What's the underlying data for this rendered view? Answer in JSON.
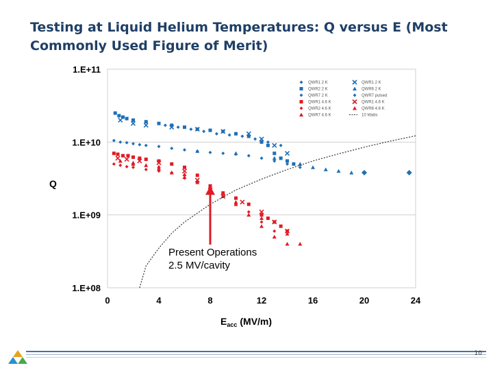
{
  "slide": {
    "title": "Testing at Liquid Helium Temperatures: Q versus E (Most Commonly Used Figure of Merit)",
    "page_number": "10"
  },
  "chart_data": {
    "type": "scatter",
    "title": "",
    "xlabel_main": "E",
    "xlabel_sub": "acc",
    "xlabel_unit": "(MV/m)",
    "ylabel": "Q",
    "xlim": [
      0,
      24
    ],
    "ylim": [
      100000000,
      100000000000
    ],
    "y_scale": "log",
    "x_ticks": [
      "0",
      "4",
      "8",
      "12",
      "16",
      "20",
      "24"
    ],
    "y_ticks": [
      "1.E+08",
      "1.E+09",
      "1.E+10",
      "1.E+11"
    ],
    "grid": "horizontal",
    "legend_position": "top-right",
    "annotation": {
      "line1": "Present Operations",
      "line2": "2.5 MV/cavity",
      "arrow_x": 8,
      "arrow_y": 2500000000
    },
    "series": [
      {
        "name": "QWR1 2 K",
        "marker": "diamond",
        "color": "#1f6fb5",
        "x": [
          4.5,
          5.5,
          6.5,
          7.5,
          8.5,
          9.5,
          10.5,
          11.5,
          12.5,
          13.5
        ],
        "y": [
          17000000000,
          16000000000,
          15000000000,
          14000000000,
          13000000000,
          12500000000,
          12000000000,
          11000000000,
          10000000000,
          9000000000
        ]
      },
      {
        "name": "QWR2 2 K",
        "marker": "square",
        "color": "#1f6fb5",
        "x": [
          0.6,
          0.9,
          1.2,
          1.5,
          2,
          3,
          4,
          5,
          6,
          7,
          8,
          9,
          10,
          11,
          12,
          12.5,
          13,
          13.5,
          14,
          14.5
        ],
        "y": [
          25000000000,
          23000000000,
          22000000000,
          21000000000,
          20000000000,
          19000000000,
          18000000000,
          17000000000,
          16000000000,
          15000000000,
          14500000000,
          14000000000,
          13000000000,
          12000000000,
          10000000000,
          9000000000,
          7000000000,
          6000000000,
          5500000000,
          5000000000
        ]
      },
      {
        "name": "QWR7 2 K",
        "marker": "diamond",
        "color": "#1f6fb5",
        "x": [
          0.5,
          1,
          1.5,
          2,
          2.5,
          3,
          4,
          5,
          6,
          7,
          8,
          9,
          10,
          11,
          12,
          13,
          14,
          15
        ],
        "y": [
          10500000000,
          10000000000,
          9800000000,
          9500000000,
          9200000000,
          9000000000,
          8700000000,
          8200000000,
          7800000000,
          7500000000,
          7200000000,
          7000000000,
          6800000000,
          6500000000,
          6000000000,
          5500000000,
          5000000000,
          4500000000
        ]
      },
      {
        "name": "QWR1 4.6 K",
        "marker": "square",
        "color": "#e01b24",
        "x": [
          0.5,
          0.8,
          1.2,
          1.6,
          2,
          2.5,
          3,
          4,
          5,
          6,
          7,
          8,
          9,
          10,
          11,
          12,
          12.5,
          13,
          13.5,
          14
        ],
        "y": [
          7000000000,
          6800000000,
          6500000000,
          6500000000,
          6200000000,
          6000000000,
          5800000000,
          5500000000,
          5000000000,
          4500000000,
          3500000000,
          2500000000,
          2000000000,
          1700000000,
          1400000000,
          1000000000,
          900000000,
          800000000,
          700000000,
          600000000
        ]
      },
      {
        "name": "QWR2 4.6 K",
        "marker": "diamond",
        "color": "#e01b24",
        "x": [
          0.5,
          1,
          1.5,
          2,
          3,
          4,
          5,
          6,
          7,
          8,
          9,
          10,
          11,
          12,
          13
        ],
        "y": [
          5000000000,
          4800000000,
          4600000000,
          4500000000,
          4200000000,
          4000000000,
          3800000000,
          3200000000,
          2800000000,
          2200000000,
          1800000000,
          1400000000,
          1100000000,
          800000000,
          600000000
        ]
      },
      {
        "name": "QWR7 4.6 K",
        "marker": "triangle",
        "color": "#e01b24",
        "x": [
          1,
          2,
          3,
          4,
          5,
          6,
          7,
          8,
          9,
          10,
          11,
          12,
          13,
          14
        ],
        "y": [
          5500000000,
          5200000000,
          4800000000,
          4300000000,
          3800000000,
          3300000000,
          2800000000,
          2300000000,
          1800000000,
          1400000000,
          1000000000,
          700000000,
          500000000,
          400000000
        ]
      },
      {
        "name": "QWR1 2 K",
        "marker": "cross",
        "color": "#1f6fb5",
        "x": [
          1,
          2,
          3,
          5,
          7,
          9,
          11,
          12,
          13,
          14
        ],
        "y": [
          20000000000,
          18000000000,
          17000000000,
          16000000000,
          15000000000,
          14000000000,
          13000000000,
          11000000000,
          9000000000,
          7000000000
        ]
      },
      {
        "name": "QWR6 2 K",
        "marker": "triangle",
        "color": "#1f6fb5",
        "x": [
          7,
          10,
          13,
          15,
          16,
          17,
          18,
          19
        ],
        "y": [
          7500000000,
          7000000000,
          6000000000,
          5000000000,
          4500000000,
          4200000000,
          4000000000,
          3800000000
        ]
      },
      {
        "name": "QWR7 pulsed",
        "marker": "diamond-big",
        "color": "#1f6fb5",
        "x": [
          20,
          23.5
        ],
        "y": [
          3800000000,
          3800000000
        ]
      },
      {
        "name": "QWR1 4.6 K",
        "marker": "cross",
        "color": "#e01b24",
        "x": [
          0.8,
          1.5,
          2.5,
          4,
          6,
          7,
          8,
          9,
          10.5,
          12,
          13,
          14
        ],
        "y": [
          6000000000,
          5800000000,
          5500000000,
          5200000000,
          4000000000,
          3000000000,
          2200000000,
          1800000000,
          1500000000,
          1100000000,
          800000000,
          600000000
        ]
      },
      {
        "name": "QWR6 4.6 K",
        "marker": "triangle",
        "color": "#e01b24",
        "x": [
          2,
          4,
          6,
          8,
          10,
          12,
          14,
          15
        ],
        "y": [
          5000000000,
          4600000000,
          3600000000,
          2400000000,
          1500000000,
          900000000,
          550000000,
          400000000
        ]
      },
      {
        "name": "10 Watts",
        "marker": "line",
        "color": "#333333",
        "x": [
          2.5,
          3,
          4,
          5,
          6,
          8,
          10,
          12,
          14,
          16,
          18,
          20,
          22,
          24
        ],
        "y": [
          100000000,
          200000000,
          350000000,
          560000000,
          800000000,
          1400000000,
          2200000000,
          3100000000,
          4200000000,
          5500000000,
          6900000000,
          8500000000,
          10300000000,
          12200000000
        ]
      }
    ]
  }
}
